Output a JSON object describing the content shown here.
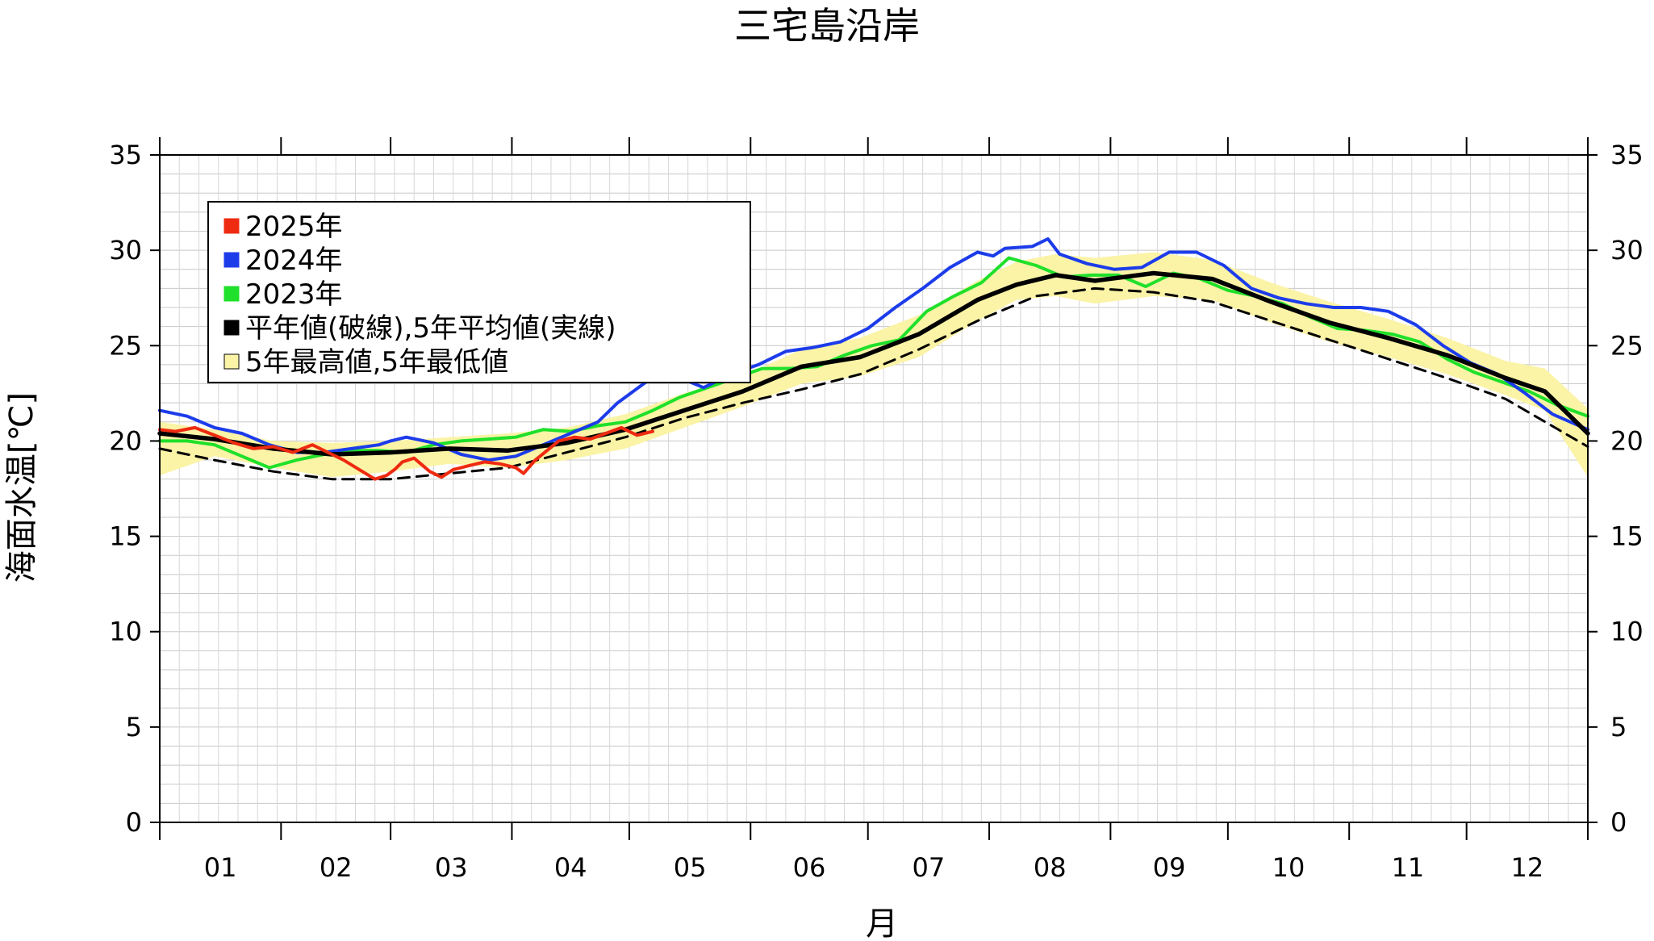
{
  "chart_data": {
    "type": "line",
    "title": "三宅島沿岸",
    "xlabel": "月",
    "ylabel": "海面水温[℃]",
    "ylim": [
      0,
      35
    ],
    "y_ticks": [
      "0",
      "5",
      "10",
      "15",
      "20",
      "25",
      "30",
      "35"
    ],
    "x_tick_labels": [
      "01",
      "02",
      "03",
      "04",
      "05",
      "06",
      "07",
      "08",
      "09",
      "10",
      "11",
      "12"
    ],
    "x_unit": "day_of_year",
    "xlim": [
      1,
      366
    ],
    "legend_position": "top-left",
    "grid": true,
    "colors": {
      "y2025": "#ee2a10",
      "y2024": "#1c3cea",
      "y2023": "#1fe02a",
      "normal": "#000000",
      "band_fill": "#fbf3a6"
    },
    "legend": [
      {
        "label": "2025年",
        "color": "#ee2a10"
      },
      {
        "label": "2024年",
        "color": "#1c3cea"
      },
      {
        "label": "2023年",
        "color": "#1fe02a"
      },
      {
        "label": "平年値(破線),5年平均値(実線)",
        "color": "#000000"
      },
      {
        "label": "5年最高値,5年最低値",
        "color": "#fbf3a6"
      }
    ],
    "series": [
      {
        "name": "2025年",
        "color": "#ee2a10",
        "x": [
          1,
          5,
          10,
          15,
          20,
          25,
          30,
          35,
          40,
          45,
          48,
          52,
          56,
          59,
          61,
          63,
          66,
          70,
          73,
          76,
          80,
          84,
          88,
          92,
          94,
          97,
          100,
          103,
          107,
          111,
          115,
          119,
          123,
          127
        ],
        "y": [
          20.6,
          20.5,
          20.7,
          20.3,
          19.9,
          19.6,
          19.7,
          19.4,
          19.8,
          19.3,
          19.0,
          18.5,
          18.0,
          18.2,
          18.5,
          18.9,
          19.1,
          18.4,
          18.1,
          18.5,
          18.7,
          18.9,
          18.8,
          18.6,
          18.3,
          19.0,
          19.5,
          20.0,
          20.2,
          20.1,
          20.4,
          20.7,
          20.3,
          20.5
        ]
      },
      {
        "name": "2024年",
        "color": "#1c3cea",
        "x": [
          1,
          8,
          15,
          22,
          29,
          36,
          43,
          50,
          57,
          60,
          64,
          71,
          78,
          85,
          92,
          99,
          106,
          113,
          118,
          122,
          126,
          133,
          140,
          147,
          154,
          161,
          168,
          175,
          182,
          189,
          196,
          203,
          210,
          214,
          217,
          224,
          228,
          231,
          238,
          245,
          252,
          259,
          266,
          273,
          280,
          287,
          294,
          301,
          308,
          315,
          322,
          329,
          336,
          343,
          350,
          357,
          366
        ],
        "y": [
          21.6,
          21.3,
          20.7,
          20.4,
          19.8,
          19.4,
          19.4,
          19.6,
          19.8,
          20.0,
          20.2,
          19.9,
          19.3,
          19.0,
          19.2,
          19.8,
          20.4,
          21.0,
          22.0,
          22.6,
          23.2,
          23.4,
          22.8,
          23.5,
          24.0,
          24.7,
          24.9,
          25.2,
          25.9,
          27.0,
          28.0,
          29.1,
          29.9,
          29.7,
          30.1,
          30.2,
          30.6,
          29.8,
          29.3,
          29.0,
          29.1,
          29.9,
          29.9,
          29.2,
          28.0,
          27.5,
          27.2,
          27.0,
          27.0,
          26.8,
          26.1,
          25.0,
          24.1,
          23.5,
          22.5,
          21.4,
          20.6
        ]
      },
      {
        "name": "2023年",
        "color": "#1fe02a",
        "x": [
          1,
          8,
          15,
          22,
          29,
          36,
          43,
          50,
          57,
          64,
          71,
          78,
          85,
          92,
          99,
          106,
          113,
          120,
          127,
          134,
          141,
          148,
          155,
          162,
          169,
          176,
          183,
          190,
          197,
          204,
          211,
          218,
          225,
          232,
          239,
          246,
          253,
          260,
          267,
          274,
          281,
          288,
          295,
          302,
          309,
          316,
          323,
          330,
          337,
          344,
          351,
          358,
          366
        ],
        "y": [
          20.0,
          20.0,
          19.8,
          19.2,
          18.6,
          19.0,
          19.3,
          19.5,
          19.5,
          19.4,
          19.8,
          20.0,
          20.1,
          20.2,
          20.6,
          20.5,
          20.8,
          21.0,
          21.6,
          22.3,
          22.8,
          23.3,
          23.8,
          23.8,
          23.9,
          24.5,
          25.0,
          25.3,
          26.8,
          27.6,
          28.3,
          29.6,
          29.2,
          28.6,
          28.7,
          28.7,
          28.1,
          28.8,
          28.5,
          27.9,
          27.6,
          27.2,
          26.5,
          25.9,
          25.8,
          25.6,
          25.2,
          24.3,
          23.6,
          23.1,
          22.6,
          21.9,
          21.3
        ]
      },
      {
        "name": "平年値",
        "color": "#000000",
        "dashed": true,
        "x": [
          1,
          15,
          30,
          45,
          60,
          75,
          90,
          105,
          120,
          135,
          150,
          165,
          180,
          195,
          210,
          225,
          240,
          255,
          270,
          285,
          300,
          315,
          330,
          345,
          366
        ],
        "y": [
          19.6,
          19.0,
          18.4,
          18.0,
          18.0,
          18.3,
          18.6,
          19.4,
          20.2,
          21.2,
          22.0,
          22.7,
          23.5,
          24.8,
          26.3,
          27.6,
          28.0,
          27.8,
          27.3,
          26.3,
          25.3,
          24.3,
          23.3,
          22.2,
          19.7
        ]
      },
      {
        "name": "5年平均値",
        "color": "#000000",
        "x": [
          1,
          15,
          30,
          45,
          60,
          75,
          90,
          105,
          120,
          135,
          150,
          165,
          180,
          195,
          210,
          220,
          230,
          240,
          255,
          270,
          285,
          300,
          315,
          330,
          345,
          355,
          366
        ],
        "y": [
          20.4,
          20.1,
          19.6,
          19.3,
          19.4,
          19.6,
          19.5,
          19.9,
          20.6,
          21.6,
          22.6,
          23.9,
          24.4,
          25.6,
          27.4,
          28.2,
          28.7,
          28.4,
          28.8,
          28.5,
          27.3,
          26.2,
          25.4,
          24.5,
          23.3,
          22.6,
          20.4
        ]
      }
    ],
    "band": {
      "name": "5年最高値,5年最低値",
      "x": [
        1,
        15,
        30,
        45,
        60,
        75,
        90,
        105,
        120,
        135,
        150,
        165,
        180,
        195,
        210,
        220,
        230,
        240,
        255,
        270,
        285,
        300,
        315,
        330,
        345,
        355,
        366
      ],
      "upper": [
        21.0,
        20.6,
        20.0,
        19.9,
        20.0,
        20.2,
        20.4,
        20.7,
        21.4,
        22.5,
        23.4,
        24.8,
        25.4,
        26.6,
        28.4,
        29.4,
        29.8,
        29.6,
        29.9,
        29.5,
        28.3,
        27.3,
        26.4,
        25.4,
        24.2,
        23.8,
        21.7
      ],
      "lower": [
        18.2,
        19.2,
        18.6,
        18.1,
        18.4,
        18.8,
        18.6,
        19.0,
        19.6,
        20.7,
        21.8,
        23.0,
        23.4,
        24.4,
        26.3,
        27.4,
        27.6,
        27.2,
        27.6,
        27.4,
        26.2,
        25.2,
        24.4,
        23.5,
        22.4,
        21.6,
        18.1
      ]
    }
  }
}
